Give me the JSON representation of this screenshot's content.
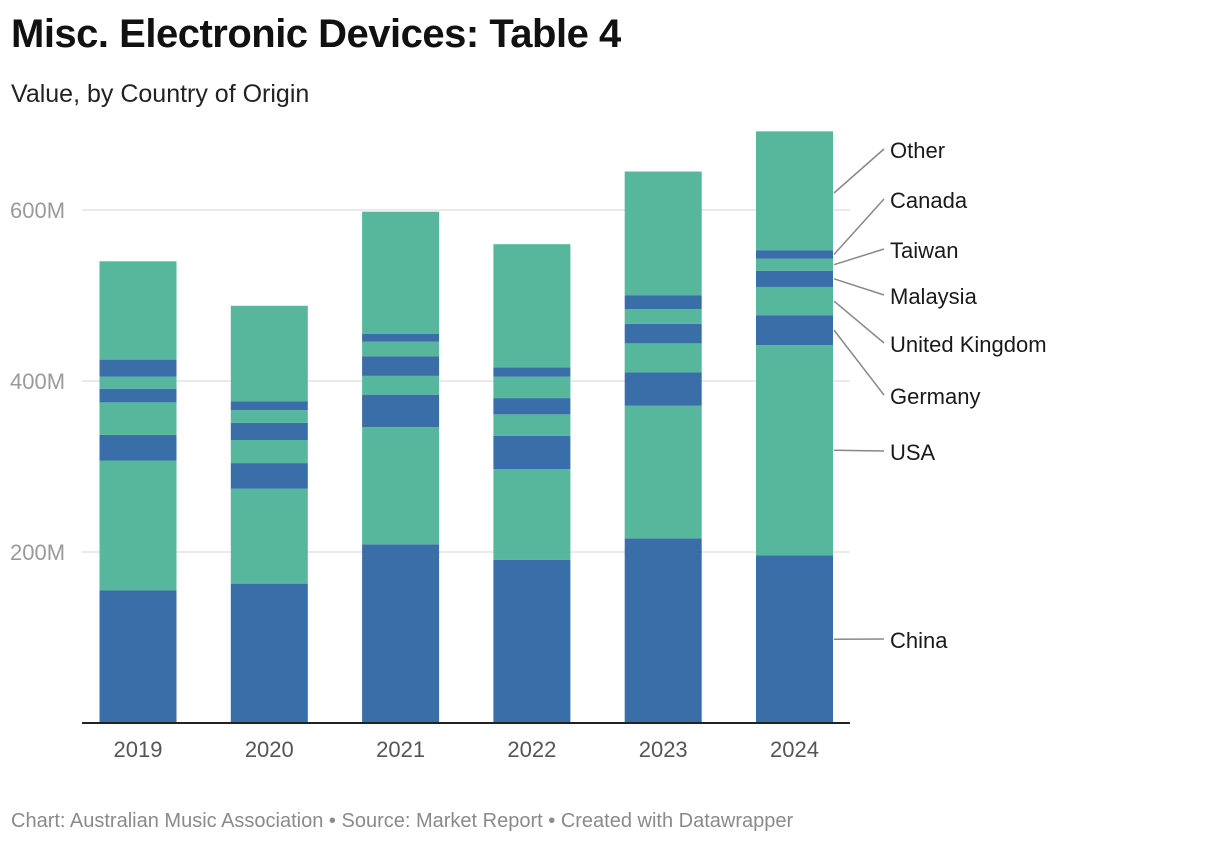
{
  "header": {
    "title": "Misc. Electronic Devices: Table 4",
    "subtitle": "Value, by Country of Origin"
  },
  "footer": {
    "credit": "Chart: Australian Music Association",
    "separator_1": " • ",
    "source": "Source: Market Report",
    "separator_2": " • ",
    "created": "Created with Datawrapper"
  },
  "colors": {
    "blue": "#3a6ea8",
    "green": "#57b79c",
    "grid": "#e4e4e4",
    "axis": "#222222",
    "leader": "#888888"
  },
  "chart_data": {
    "type": "bar",
    "stacked": true,
    "title": "Misc. Electronic Devices: Table 4",
    "subtitle": "Value, by Country of Origin",
    "xlabel": "",
    "ylabel": "",
    "ylim": [
      0,
      700000000
    ],
    "y_ticks": [
      200000000,
      400000000,
      600000000
    ],
    "y_tick_labels": [
      "200M",
      "400M",
      "600M"
    ],
    "grid": true,
    "categories": [
      "2019",
      "2020",
      "2021",
      "2022",
      "2023",
      "2024"
    ],
    "series": [
      {
        "name": "China",
        "color": "#3a6ea8",
        "values": [
          155000000,
          163000000,
          209000000,
          191000000,
          216000000,
          196000000
        ]
      },
      {
        "name": "USA",
        "color": "#57b79c",
        "values": [
          152000000,
          111000000,
          137000000,
          106000000,
          155000000,
          246000000
        ]
      },
      {
        "name": "Germany",
        "color": "#3a6ea8",
        "values": [
          30000000,
          30000000,
          38000000,
          39000000,
          39000000,
          35000000
        ]
      },
      {
        "name": "United Kingdom",
        "color": "#57b79c",
        "values": [
          38000000,
          27000000,
          22000000,
          25000000,
          34000000,
          33000000
        ]
      },
      {
        "name": "Malaysia",
        "color": "#3a6ea8",
        "values": [
          16000000,
          20000000,
          23000000,
          19000000,
          23000000,
          19000000
        ]
      },
      {
        "name": "Taiwan",
        "color": "#57b79c",
        "values": [
          14000000,
          15000000,
          17000000,
          25000000,
          17000000,
          14000000
        ]
      },
      {
        "name": "Canada",
        "color": "#3a6ea8",
        "values": [
          20000000,
          10000000,
          9000000,
          11000000,
          16000000,
          10000000
        ]
      },
      {
        "name": "Other",
        "color": "#57b79c",
        "values": [
          115000000,
          112000000,
          143000000,
          144000000,
          145000000,
          139000000
        ]
      }
    ],
    "legend_placement": "right, labels attached to last bar with leader lines"
  }
}
